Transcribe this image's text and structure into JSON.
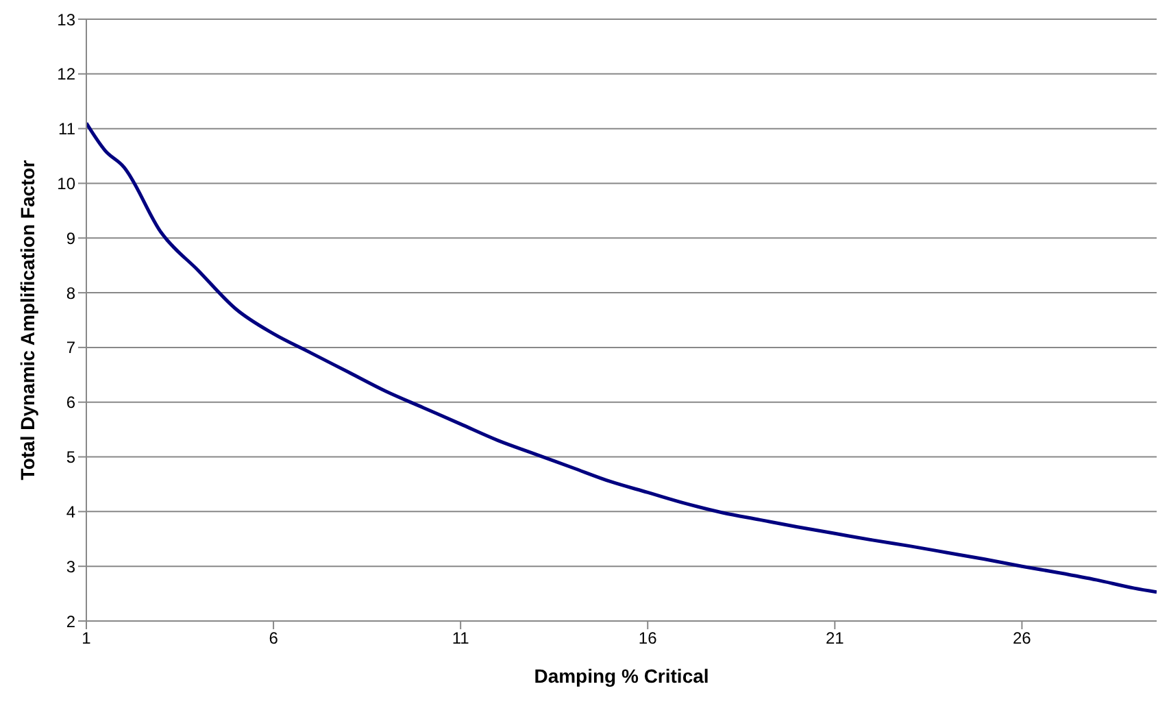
{
  "chart_data": {
    "type": "line",
    "xlabel": "Damping % Critical",
    "ylabel": "Total Dynamic Amplification Factor",
    "x": [
      1,
      1.5,
      2,
      3,
      4,
      5,
      6,
      7,
      8,
      9,
      10,
      11,
      12,
      13,
      14,
      15,
      16,
      17,
      18,
      19,
      20,
      21,
      22,
      23,
      24,
      25,
      26,
      27,
      28,
      29,
      29.6
    ],
    "series": [
      {
        "color": "#000080",
        "values": [
          11.1,
          10.6,
          10.3,
          9.1,
          8.4,
          7.7,
          7.25,
          6.9,
          6.55,
          6.2,
          5.9,
          5.6,
          5.3,
          5.05,
          4.8,
          4.55,
          4.35,
          4.15,
          3.98,
          3.85,
          3.72,
          3.6,
          3.48,
          3.37,
          3.25,
          3.13,
          3.0,
          2.88,
          2.75,
          2.6,
          2.53
        ]
      }
    ],
    "xlim": [
      1,
      29.6
    ],
    "xticks": [
      1,
      6,
      11,
      16,
      21,
      26
    ],
    "ylim": [
      2,
      13
    ],
    "yticks": [
      2,
      3,
      4,
      5,
      6,
      7,
      8,
      9,
      10,
      11,
      12,
      13
    ],
    "grid": "y",
    "legend": false,
    "marker": "none",
    "line_style": "solid"
  }
}
